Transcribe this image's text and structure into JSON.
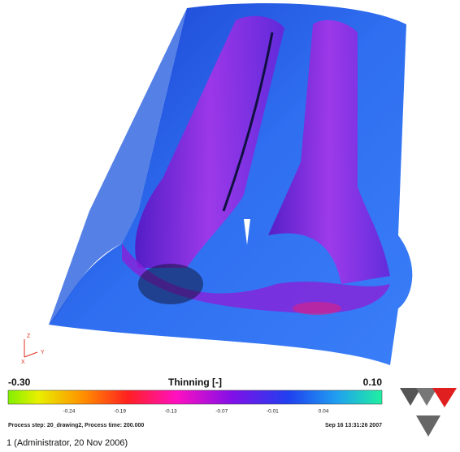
{
  "legend": {
    "title": "Thinning [-]",
    "min_label": "-0.30",
    "max_label": "0.10",
    "tick_labels": [
      "-0.24",
      "-0.19",
      "-0.13",
      "-0.07",
      "-0.01",
      "0.04"
    ]
  },
  "axes_triad": {
    "z": "Z",
    "y": "Y",
    "x": "X"
  },
  "status": {
    "process": "Process step: 20_drawing2, Process time: 200.000",
    "date": "Sep 16 13:31:26 2007"
  },
  "footer": "1 (Administrator, 20 Nov 2006)"
}
